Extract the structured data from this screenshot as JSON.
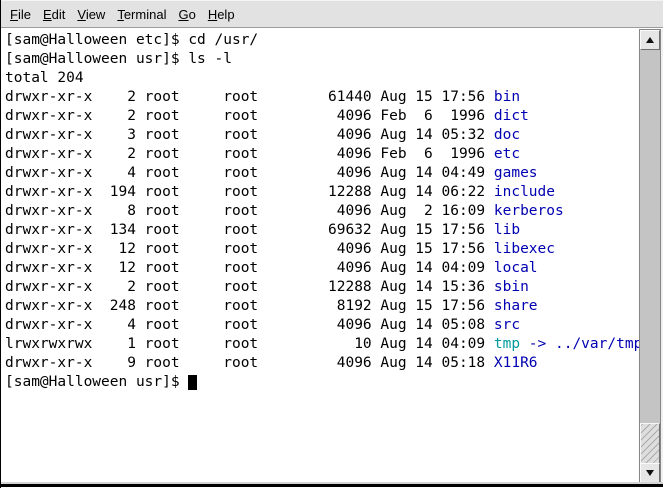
{
  "menu": {
    "items": [
      {
        "label": "File",
        "mnemonic": "F",
        "rest": "ile"
      },
      {
        "label": "Edit",
        "mnemonic": "E",
        "rest": "dit"
      },
      {
        "label": "View",
        "mnemonic": "V",
        "rest": "iew"
      },
      {
        "label": "Terminal",
        "mnemonic": "T",
        "rest": "erminal"
      },
      {
        "label": "Go",
        "mnemonic": "G",
        "rest": "o"
      },
      {
        "label": "Help",
        "mnemonic": "H",
        "rest": "elp"
      }
    ]
  },
  "terminal": {
    "history": [
      "[sam@Halloween etc]$ cd /usr/",
      "[sam@Halloween usr]$ ls -l",
      "total 204"
    ],
    "listing": [
      {
        "perms": "drwxr-xr-x",
        "links": 2,
        "owner": "root",
        "group": "root",
        "size": 61440,
        "date": "Aug 15 17:56",
        "name": "bin",
        "type": "dir",
        "prefix": "drwxr-xr-x    2 root     root        61440 Aug 15 17:56 "
      },
      {
        "perms": "drwxr-xr-x",
        "links": 2,
        "owner": "root",
        "group": "root",
        "size": 4096,
        "date": "Feb  6  1996",
        "name": "dict",
        "type": "dir",
        "prefix": "drwxr-xr-x    2 root     root         4096 Feb  6  1996 "
      },
      {
        "perms": "drwxr-xr-x",
        "links": 3,
        "owner": "root",
        "group": "root",
        "size": 4096,
        "date": "Aug 14 05:32",
        "name": "doc",
        "type": "dir",
        "prefix": "drwxr-xr-x    3 root     root         4096 Aug 14 05:32 "
      },
      {
        "perms": "drwxr-xr-x",
        "links": 2,
        "owner": "root",
        "group": "root",
        "size": 4096,
        "date": "Feb  6  1996",
        "name": "etc",
        "type": "dir",
        "prefix": "drwxr-xr-x    2 root     root         4096 Feb  6  1996 "
      },
      {
        "perms": "drwxr-xr-x",
        "links": 4,
        "owner": "root",
        "group": "root",
        "size": 4096,
        "date": "Aug 14 04:49",
        "name": "games",
        "type": "dir",
        "prefix": "drwxr-xr-x    4 root     root         4096 Aug 14 04:49 "
      },
      {
        "perms": "drwxr-xr-x",
        "links": 194,
        "owner": "root",
        "group": "root",
        "size": 12288,
        "date": "Aug 14 06:22",
        "name": "include",
        "type": "dir",
        "prefix": "drwxr-xr-x  194 root     root        12288 Aug 14 06:22 "
      },
      {
        "perms": "drwxr-xr-x",
        "links": 8,
        "owner": "root",
        "group": "root",
        "size": 4096,
        "date": "Aug  2 16:09",
        "name": "kerberos",
        "type": "dir",
        "prefix": "drwxr-xr-x    8 root     root         4096 Aug  2 16:09 "
      },
      {
        "perms": "drwxr-xr-x",
        "links": 134,
        "owner": "root",
        "group": "root",
        "size": 69632,
        "date": "Aug 15 17:56",
        "name": "lib",
        "type": "dir",
        "prefix": "drwxr-xr-x  134 root     root        69632 Aug 15 17:56 "
      },
      {
        "perms": "drwxr-xr-x",
        "links": 12,
        "owner": "root",
        "group": "root",
        "size": 4096,
        "date": "Aug 15 17:56",
        "name": "libexec",
        "type": "dir",
        "prefix": "drwxr-xr-x   12 root     root         4096 Aug 15 17:56 "
      },
      {
        "perms": "drwxr-xr-x",
        "links": 12,
        "owner": "root",
        "group": "root",
        "size": 4096,
        "date": "Aug 14 04:09",
        "name": "local",
        "type": "dir",
        "prefix": "drwxr-xr-x   12 root     root         4096 Aug 14 04:09 "
      },
      {
        "perms": "drwxr-xr-x",
        "links": 2,
        "owner": "root",
        "group": "root",
        "size": 12288,
        "date": "Aug 14 15:36",
        "name": "sbin",
        "type": "dir",
        "prefix": "drwxr-xr-x    2 root     root        12288 Aug 14 15:36 "
      },
      {
        "perms": "drwxr-xr-x",
        "links": 248,
        "owner": "root",
        "group": "root",
        "size": 8192,
        "date": "Aug 15 17:56",
        "name": "share",
        "type": "dir",
        "prefix": "drwxr-xr-x  248 root     root         8192 Aug 15 17:56 "
      },
      {
        "perms": "drwxr-xr-x",
        "links": 4,
        "owner": "root",
        "group": "root",
        "size": 4096,
        "date": "Aug 14 05:08",
        "name": "src",
        "type": "dir",
        "prefix": "drwxr-xr-x    4 root     root         4096 Aug 14 05:08 "
      },
      {
        "perms": "lrwxrwxrwx",
        "links": 1,
        "owner": "root",
        "group": "root",
        "size": 10,
        "date": "Aug 14 04:09",
        "name": "tmp",
        "type": "symlink",
        "target": "../var/tmp",
        "suffix": " -> ../var/tmp",
        "prefix": "lrwxrwxrwx    1 root     root           10 Aug 14 04:09 "
      },
      {
        "perms": "drwxr-xr-x",
        "links": 9,
        "owner": "root",
        "group": "root",
        "size": 4096,
        "date": "Aug 14 05:18",
        "name": "X11R6",
        "type": "dir",
        "prefix": "drwxr-xr-x    9 root     root         4096 Aug 14 05:18 "
      }
    ],
    "prompt": "[sam@Halloween usr]$ "
  },
  "colors": {
    "directory": "#0000b2",
    "symlink": "#009a9a",
    "text": "#000000",
    "terminal_bg": "#ffffff",
    "chrome_bg": "#e2e2e2"
  }
}
